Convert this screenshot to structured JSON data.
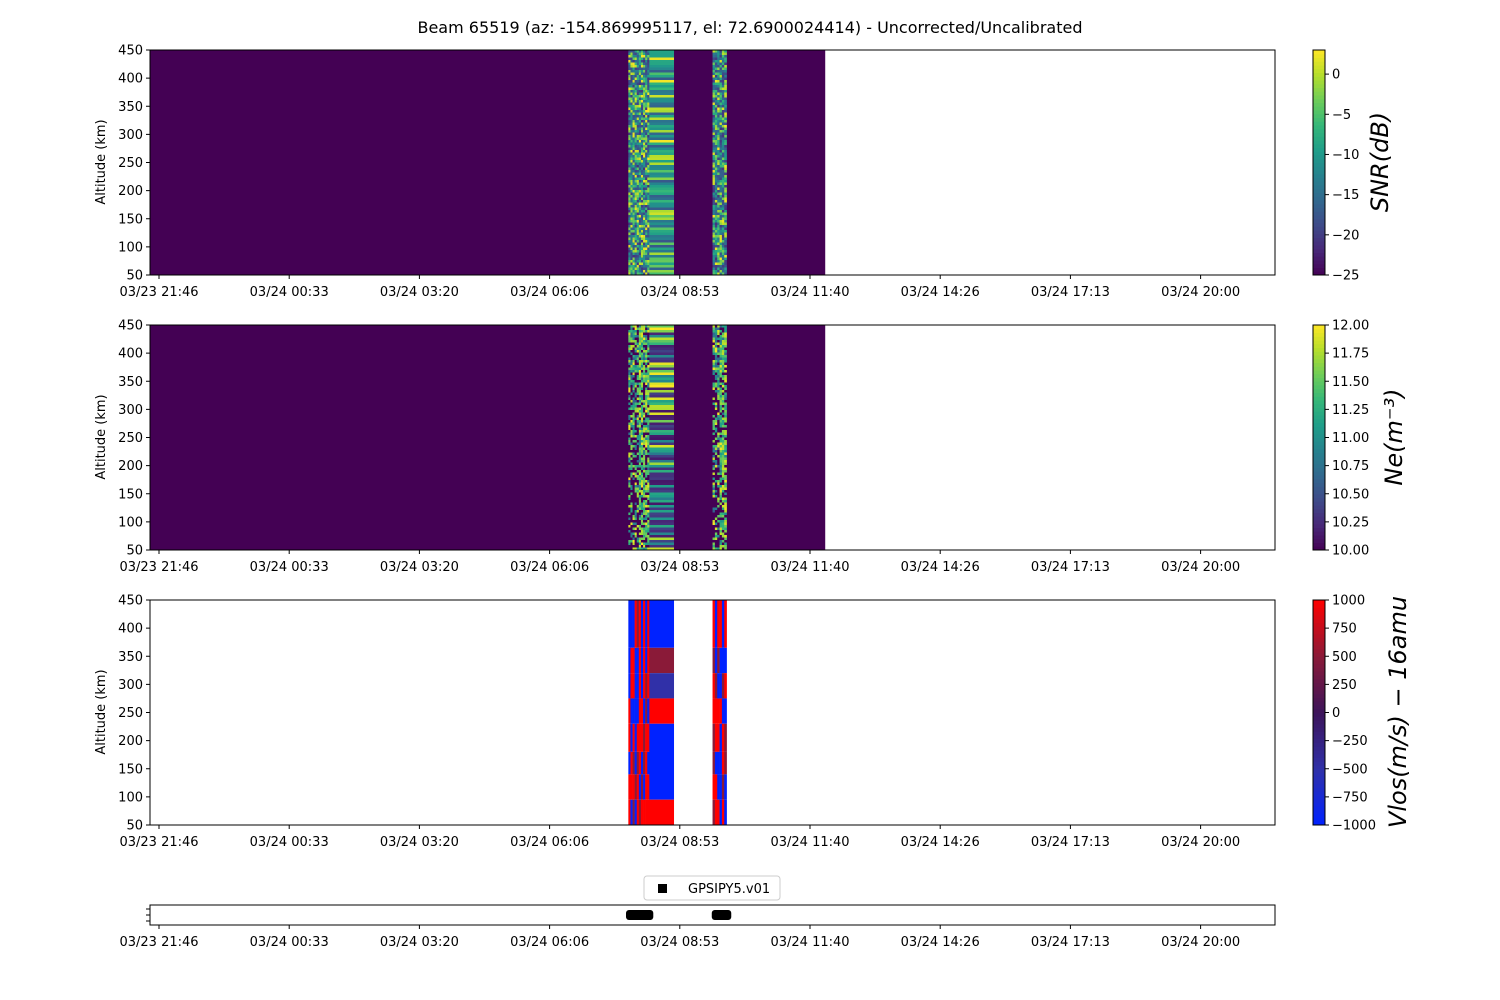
{
  "title": "Beam 65519 (az: -154.869995117, el: 72.6900024414) - Uncorrected/Uncalibrated",
  "time_ticks": [
    "03/23 21:46",
    "03/24 00:33",
    "03/24 03:20",
    "03/24 06:06",
    "03/24 08:53",
    "03/24 11:40",
    "03/24 14:26",
    "03/24 17:13",
    "03/24 20:00"
  ],
  "colors": {
    "viridis_low": "#440154",
    "vlos_red": "#ff0000",
    "vlos_blue": "#0022ff",
    "vlos_dark_red": "#8a1a38",
    "vlos_dark_blue": "#3030a8"
  },
  "chart_data": [
    {
      "type": "heatmap",
      "name": "snr",
      "ylabel": "Altitude (km)",
      "ylim": [
        50,
        450
      ],
      "yticks": [
        50,
        100,
        150,
        200,
        250,
        300,
        350,
        400,
        450
      ],
      "colorbar": {
        "label": "SNR(dB)",
        "range": [
          -25,
          3
        ],
        "ticks": [
          "0",
          "−5",
          "−10",
          "−15",
          "−20",
          "−25"
        ],
        "tick_values": [
          0,
          -5,
          -10,
          -15,
          -20,
          -25
        ],
        "colormap": "viridis"
      },
      "data_coverage_end": "03/24 11:40",
      "active_intervals": [
        [
          "03/24 07:48",
          "03/24 08:53"
        ],
        [
          "03/24 09:36",
          "03/24 09:54"
        ]
      ]
    },
    {
      "type": "heatmap",
      "name": "ne",
      "ylabel": "Altitude (km)",
      "ylim": [
        50,
        450
      ],
      "yticks": [
        50,
        100,
        150,
        200,
        250,
        300,
        350,
        400,
        450
      ],
      "colorbar": {
        "label": "Ne(m⁻³)",
        "range": [
          10.0,
          12.0
        ],
        "ticks": [
          "12.00",
          "11.75",
          "11.50",
          "11.25",
          "11.00",
          "10.75",
          "10.50",
          "10.25",
          "10.00"
        ],
        "tick_values": [
          12.0,
          11.75,
          11.5,
          11.25,
          11.0,
          10.75,
          10.5,
          10.25,
          10.0
        ],
        "colormap": "viridis"
      },
      "data_coverage_end": "03/24 11:40",
      "active_intervals": [
        [
          "03/24 07:48",
          "03/24 08:53"
        ],
        [
          "03/24 09:36",
          "03/24 09:54"
        ]
      ]
    },
    {
      "type": "heatmap",
      "name": "vlos",
      "ylabel": "Altitude (km)",
      "ylim": [
        50,
        450
      ],
      "yticks": [
        50,
        100,
        150,
        200,
        250,
        300,
        350,
        400,
        450
      ],
      "colorbar": {
        "label": "Vlos(m/s) − 16amu",
        "range": [
          -1000,
          1000
        ],
        "ticks": [
          "1000",
          "750",
          "500",
          "250",
          "0",
          "−250",
          "−500",
          "−750",
          "−1000"
        ],
        "tick_values": [
          1000,
          750,
          500,
          250,
          0,
          -250,
          -500,
          -750,
          -1000
        ],
        "colormap": "bwr"
      },
      "active_intervals": [
        [
          "03/24 07:48",
          "03/24 08:53"
        ],
        [
          "03/24 09:36",
          "03/24 09:54"
        ]
      ]
    },
    {
      "type": "scatter",
      "name": "data-availability",
      "legend": "GPSIPY5.v01",
      "legend_placement": "top-center",
      "intervals": [
        [
          "03/24 07:45",
          "03/24 08:20"
        ],
        [
          "03/24 09:35",
          "03/24 10:00"
        ]
      ]
    }
  ]
}
